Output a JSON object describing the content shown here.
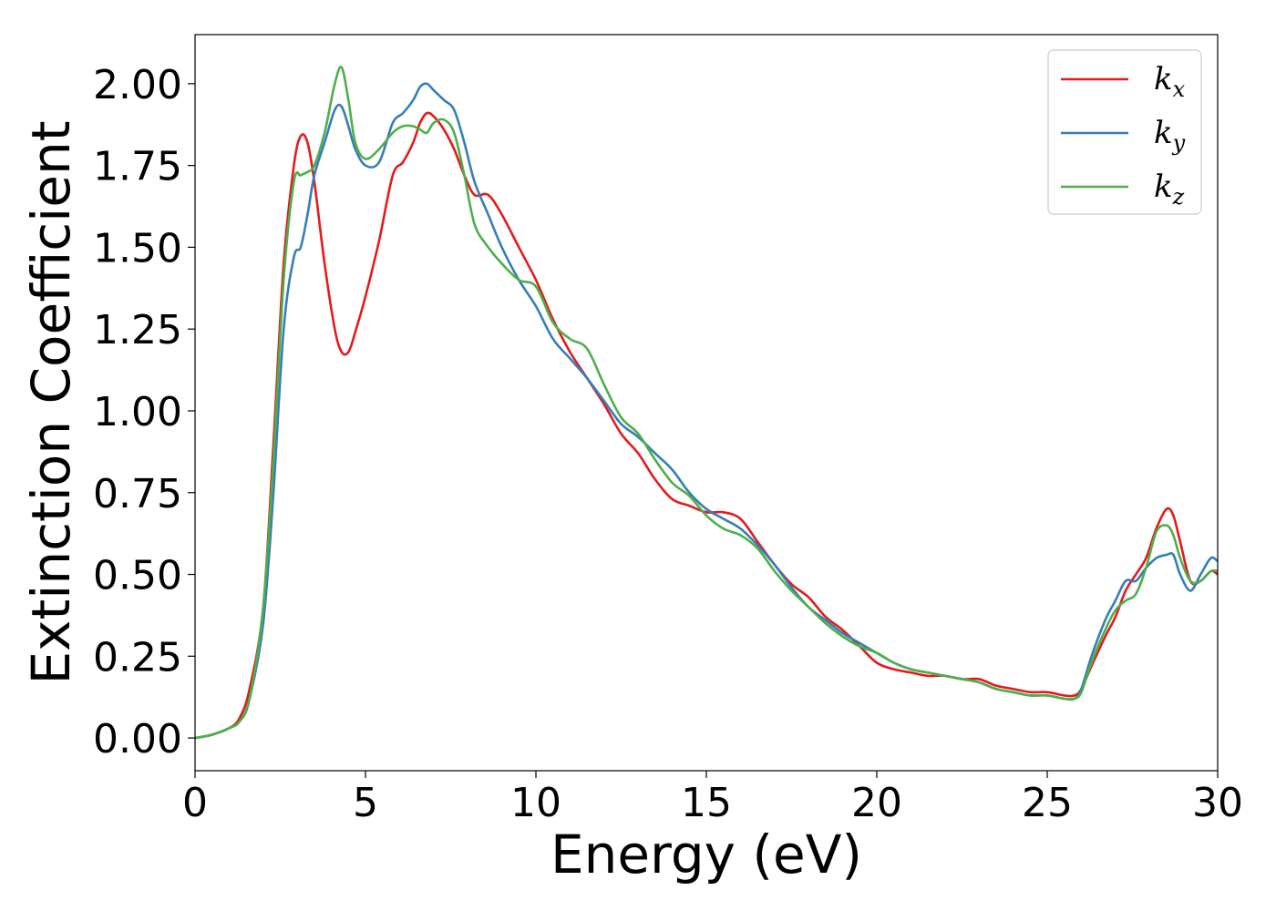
{
  "chart_data": {
    "type": "line",
    "title": "",
    "xlabel": "Energy (eV)",
    "ylabel": "Extinction Coefficient",
    "xlim": [
      0,
      30
    ],
    "ylim": [
      -0.1,
      2.15
    ],
    "xticks": [
      0,
      5,
      10,
      15,
      20,
      25,
      30
    ],
    "xtick_labels": [
      "0",
      "5",
      "10",
      "15",
      "20",
      "25",
      "30"
    ],
    "yticks": [
      0,
      0.25,
      0.5,
      0.75,
      1.0,
      1.25,
      1.5,
      1.75,
      2.0
    ],
    "ytick_labels": [
      "0.00",
      "0.25",
      "0.50",
      "0.75",
      "1.00",
      "1.25",
      "1.50",
      "1.75",
      "2.00"
    ],
    "grid": false,
    "legend_position": "top-right",
    "series": [
      {
        "name": "k_x",
        "label_base": "k",
        "label_sub": "x",
        "color": "#e41a1c",
        "x": [
          0,
          0.5,
          1,
          1.3,
          1.6,
          2,
          2.3,
          2.6,
          2.9,
          3.1,
          3.3,
          3.5,
          3.8,
          4.1,
          4.3,
          4.5,
          4.7,
          5,
          5.4,
          5.8,
          6.1,
          6.4,
          6.6,
          6.8,
          7,
          7.3,
          7.6,
          7.9,
          8.2,
          8.6,
          9,
          9.5,
          10,
          10.5,
          11,
          11.5,
          12,
          12.5,
          13,
          13.5,
          14,
          14.5,
          15,
          15.5,
          16,
          16.5,
          17,
          17.5,
          18,
          18.5,
          19,
          19.5,
          20,
          20.5,
          21,
          21.5,
          22,
          22.5,
          23,
          23.5,
          24,
          24.5,
          25,
          25.5,
          25.8,
          26,
          26.3,
          26.7,
          27,
          27.3,
          27.6,
          27.9,
          28.2,
          28.5,
          28.7,
          28.9,
          29.2,
          29.5,
          29.8,
          30
        ],
        "y": [
          0.0,
          0.01,
          0.03,
          0.06,
          0.15,
          0.4,
          0.9,
          1.45,
          1.75,
          1.84,
          1.82,
          1.7,
          1.45,
          1.25,
          1.18,
          1.18,
          1.24,
          1.35,
          1.52,
          1.72,
          1.76,
          1.82,
          1.88,
          1.91,
          1.9,
          1.86,
          1.8,
          1.72,
          1.66,
          1.66,
          1.6,
          1.5,
          1.4,
          1.28,
          1.18,
          1.1,
          1.02,
          0.93,
          0.87,
          0.79,
          0.73,
          0.71,
          0.69,
          0.69,
          0.67,
          0.6,
          0.53,
          0.47,
          0.43,
          0.37,
          0.33,
          0.28,
          0.23,
          0.21,
          0.2,
          0.19,
          0.19,
          0.18,
          0.18,
          0.16,
          0.15,
          0.14,
          0.14,
          0.13,
          0.13,
          0.15,
          0.22,
          0.31,
          0.37,
          0.45,
          0.5,
          0.55,
          0.64,
          0.7,
          0.68,
          0.6,
          0.48,
          0.48,
          0.51,
          0.5
        ]
      },
      {
        "name": "k_y",
        "label_base": "k",
        "label_sub": "y",
        "color": "#377eb8",
        "x": [
          0,
          0.5,
          1,
          1.3,
          1.6,
          2,
          2.3,
          2.6,
          2.9,
          3.1,
          3.3,
          3.5,
          3.8,
          4.1,
          4.3,
          4.5,
          4.7,
          5,
          5.4,
          5.8,
          6.1,
          6.4,
          6.6,
          6.8,
          7,
          7.3,
          7.6,
          7.9,
          8.2,
          8.6,
          9,
          9.5,
          10,
          10.5,
          11,
          11.5,
          12,
          12.5,
          13,
          13.5,
          14,
          14.5,
          15,
          15.5,
          16,
          16.5,
          17,
          17.5,
          18,
          18.5,
          19,
          19.5,
          20,
          20.5,
          21,
          21.5,
          22,
          22.5,
          23,
          23.5,
          24,
          24.5,
          25,
          25.5,
          25.8,
          26,
          26.3,
          26.7,
          27,
          27.3,
          27.6,
          27.9,
          28.2,
          28.5,
          28.7,
          28.9,
          29.2,
          29.5,
          29.8,
          30
        ],
        "y": [
          0.0,
          0.01,
          0.03,
          0.05,
          0.12,
          0.35,
          0.75,
          1.25,
          1.47,
          1.5,
          1.6,
          1.72,
          1.82,
          1.92,
          1.93,
          1.87,
          1.8,
          1.75,
          1.76,
          1.88,
          1.91,
          1.95,
          1.99,
          2.0,
          1.98,
          1.95,
          1.92,
          1.82,
          1.7,
          1.6,
          1.5,
          1.4,
          1.32,
          1.22,
          1.16,
          1.1,
          1.03,
          0.96,
          0.92,
          0.87,
          0.82,
          0.75,
          0.7,
          0.67,
          0.64,
          0.59,
          0.53,
          0.46,
          0.4,
          0.36,
          0.32,
          0.29,
          0.26,
          0.23,
          0.21,
          0.2,
          0.19,
          0.18,
          0.17,
          0.15,
          0.14,
          0.13,
          0.13,
          0.12,
          0.12,
          0.15,
          0.25,
          0.36,
          0.42,
          0.48,
          0.48,
          0.52,
          0.55,
          0.56,
          0.56,
          0.5,
          0.45,
          0.5,
          0.55,
          0.54
        ]
      },
      {
        "name": "k_z",
        "label_base": "k",
        "label_sub": "z",
        "color": "#4daf4a",
        "x": [
          0,
          0.5,
          1,
          1.3,
          1.6,
          2,
          2.3,
          2.6,
          2.9,
          3.1,
          3.3,
          3.5,
          3.8,
          4.1,
          4.3,
          4.5,
          4.7,
          5,
          5.4,
          5.8,
          6.1,
          6.4,
          6.6,
          6.8,
          7,
          7.3,
          7.6,
          7.9,
          8.2,
          8.6,
          9,
          9.5,
          10,
          10.5,
          11,
          11.5,
          12,
          12.5,
          13,
          13.5,
          14,
          14.5,
          15,
          15.5,
          16,
          16.5,
          17,
          17.5,
          18,
          18.5,
          19,
          19.5,
          20,
          20.5,
          21,
          21.5,
          22,
          22.5,
          23,
          23.5,
          24,
          24.5,
          25,
          25.5,
          25.8,
          26,
          26.3,
          26.7,
          27,
          27.3,
          27.6,
          27.9,
          28.2,
          28.5,
          28.7,
          28.9,
          29.2,
          29.5,
          29.8,
          30
        ],
        "y": [
          0.0,
          0.01,
          0.03,
          0.05,
          0.12,
          0.4,
          0.85,
          1.4,
          1.7,
          1.72,
          1.73,
          1.75,
          1.85,
          2.0,
          2.05,
          1.95,
          1.82,
          1.77,
          1.8,
          1.85,
          1.87,
          1.87,
          1.86,
          1.85,
          1.88,
          1.89,
          1.85,
          1.72,
          1.57,
          1.5,
          1.45,
          1.4,
          1.38,
          1.27,
          1.22,
          1.19,
          1.08,
          0.98,
          0.93,
          0.85,
          0.78,
          0.74,
          0.68,
          0.64,
          0.62,
          0.58,
          0.51,
          0.45,
          0.4,
          0.35,
          0.31,
          0.28,
          0.26,
          0.23,
          0.21,
          0.2,
          0.19,
          0.18,
          0.17,
          0.15,
          0.14,
          0.13,
          0.13,
          0.12,
          0.12,
          0.14,
          0.23,
          0.33,
          0.39,
          0.42,
          0.44,
          0.52,
          0.63,
          0.65,
          0.62,
          0.55,
          0.48,
          0.48,
          0.51,
          0.51
        ]
      }
    ]
  }
}
